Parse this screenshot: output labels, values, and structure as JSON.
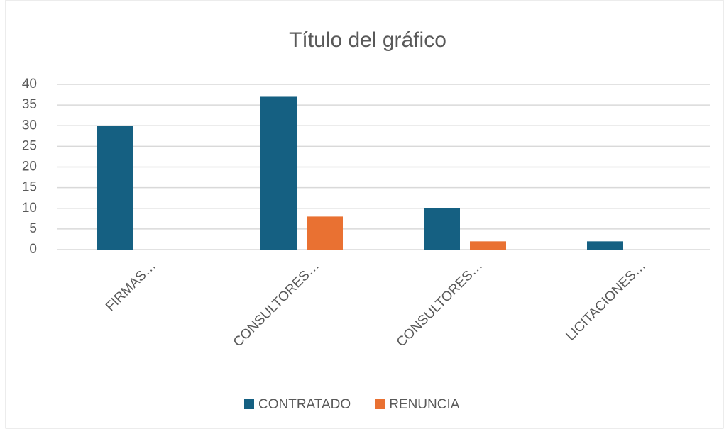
{
  "chart_data": {
    "type": "bar",
    "title": "Título del gráfico",
    "categories": [
      "FIRMAS…",
      "CONSULTORES…",
      "CONSULTORES…",
      "LICITACIONES…"
    ],
    "series": [
      {
        "name": "CONTRATADO",
        "color": "#156082",
        "values": [
          30,
          37,
          10,
          2
        ]
      },
      {
        "name": "RENUNCIA",
        "color": "#e97132",
        "values": [
          0,
          8,
          2,
          0
        ]
      }
    ],
    "ylim": [
      0,
      40
    ],
    "yticks": [
      0,
      5,
      10,
      15,
      20,
      25,
      30,
      35,
      40
    ],
    "grid": true,
    "legend": "bottom"
  }
}
